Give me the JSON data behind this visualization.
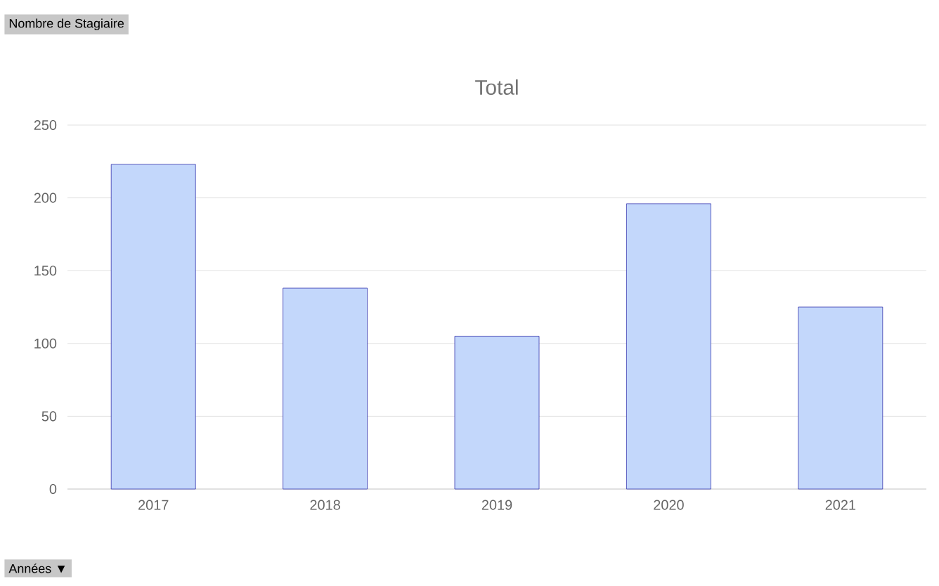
{
  "chart_data": {
    "type": "bar",
    "title": "Total",
    "categories": [
      "2017",
      "2018",
      "2019",
      "2020",
      "2021"
    ],
    "values": [
      223,
      138,
      105,
      196,
      125
    ],
    "color": "#c3d7fb",
    "ylim": [
      0,
      250
    ],
    "yticks": [
      0,
      50,
      100,
      150,
      200,
      250
    ],
    "grid": "y",
    "annotations": [
      "Nombre  de Stagiaire",
      "Années ▼"
    ]
  }
}
